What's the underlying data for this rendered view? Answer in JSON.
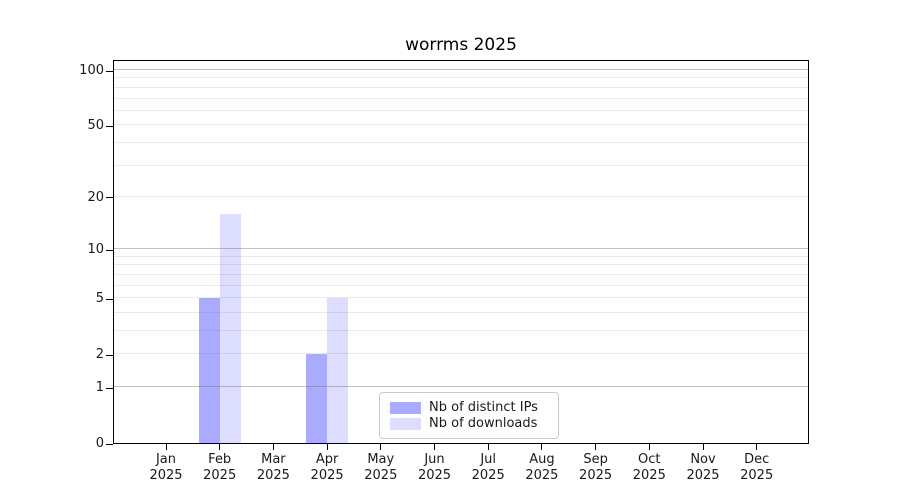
{
  "title": "worrms 2025",
  "chart_data": {
    "type": "bar",
    "title": "worrms 2025",
    "y_scale": "log10(1+v)",
    "ylim": [
      0,
      115
    ],
    "grid": "horizontal major+minor, drawn over bars",
    "legend_position": "inside-bottom-center",
    "categories": [
      "Jan",
      "Feb",
      "Mar",
      "Apr",
      "May",
      "Jun",
      "Jul",
      "Aug",
      "Sep",
      "Oct",
      "Nov",
      "Dec"
    ],
    "category_year": "2025",
    "series": [
      {
        "name": "Nb of distinct IPs",
        "color": "#aaaaff",
        "values": [
          0,
          5,
          0,
          2,
          0,
          0,
          0,
          0,
          0,
          0,
          0,
          0
        ]
      },
      {
        "name": "Nb of downloads",
        "color": "#ddddff",
        "values": [
          0,
          16,
          0,
          5,
          0,
          0,
          0,
          0,
          0,
          0,
          0,
          0
        ]
      }
    ],
    "y_ticks": [
      0,
      1,
      2,
      5,
      10,
      20,
      50,
      100
    ],
    "y_major_gridlines": [
      1,
      10,
      100
    ],
    "y_minor_gridlines": [
      2,
      3,
      4,
      5,
      6,
      7,
      8,
      9,
      20,
      30,
      40,
      50,
      60,
      70,
      80,
      90
    ]
  },
  "legend": {
    "items": [
      {
        "label": "Nb of distinct IPs",
        "color": "#aaaaff"
      },
      {
        "label": "Nb of downloads",
        "color": "#ddddff"
      }
    ]
  },
  "colors": {
    "distinct_ips_bar": "#aaaaff",
    "downloads_bar": "#ddddff",
    "axis": "#000000",
    "background": "#ffffff"
  }
}
